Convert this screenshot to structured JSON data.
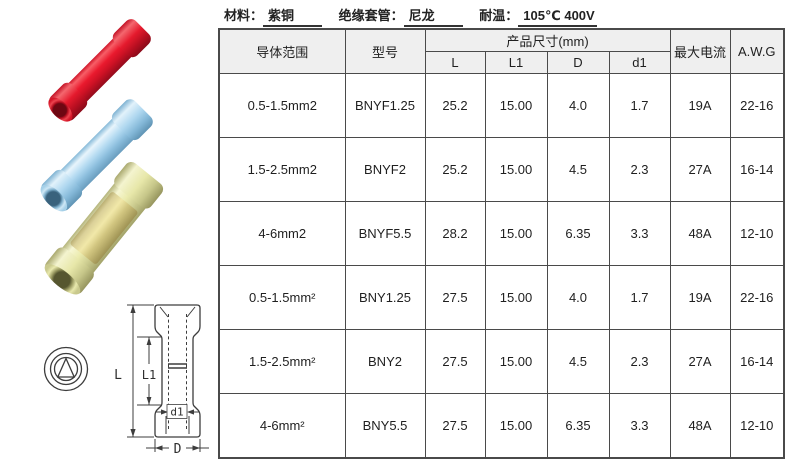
{
  "spec": {
    "items": [
      {
        "label": "材料：",
        "value": "紫铜"
      },
      {
        "label": "绝缘套管：",
        "value": "尼龙"
      },
      {
        "label": "耐温：",
        "value": "105℃ 400V"
      }
    ]
  },
  "table": {
    "header": {
      "conductor_range": "导体范围",
      "model": "型号",
      "product_size": "产品尺寸(mm)",
      "size_cols": [
        "L",
        "L1",
        "D",
        "d1"
      ],
      "max_current": "最大电流",
      "awg": "A.W.G"
    },
    "rows": [
      [
        "0.5-1.5mm2",
        "BNYF1.25",
        "25.2",
        "15.00",
        "4.0",
        "1.7",
        "19A",
        "22-16"
      ],
      [
        "1.5-2.5mm2",
        "BNYF2",
        "25.2",
        "15.00",
        "4.5",
        "2.3",
        "27A",
        "16-14"
      ],
      [
        "4-6mm2",
        "BNYF5.5",
        "28.2",
        "15.00",
        "6.35",
        "3.3",
        "48A",
        "12-10"
      ],
      [
        "0.5-1.5mm²",
        "BNY1.25",
        "27.5",
        "15.00",
        "4.0",
        "1.7",
        "19A",
        "22-16"
      ],
      [
        "1.5-2.5mm²",
        "BNY2",
        "27.5",
        "15.00",
        "4.5",
        "2.3",
        "27A",
        "16-14"
      ],
      [
        "4-6mm²",
        "BNY5.5",
        "27.5",
        "15.00",
        "6.35",
        "3.3",
        "48A",
        "12-10"
      ]
    ]
  },
  "diagram": {
    "labels": {
      "L": "L",
      "L1": "L1",
      "d1": "d1",
      "D": "D"
    }
  },
  "photos": {
    "connector_colors": {
      "red": "#e51a2d",
      "blue": "#aed7ef",
      "yellow": "#e7e7a9"
    }
  },
  "colors": {
    "table_border": "#4a4a4a",
    "header_bg": "#efefef",
    "text": "#1f1f1f"
  }
}
